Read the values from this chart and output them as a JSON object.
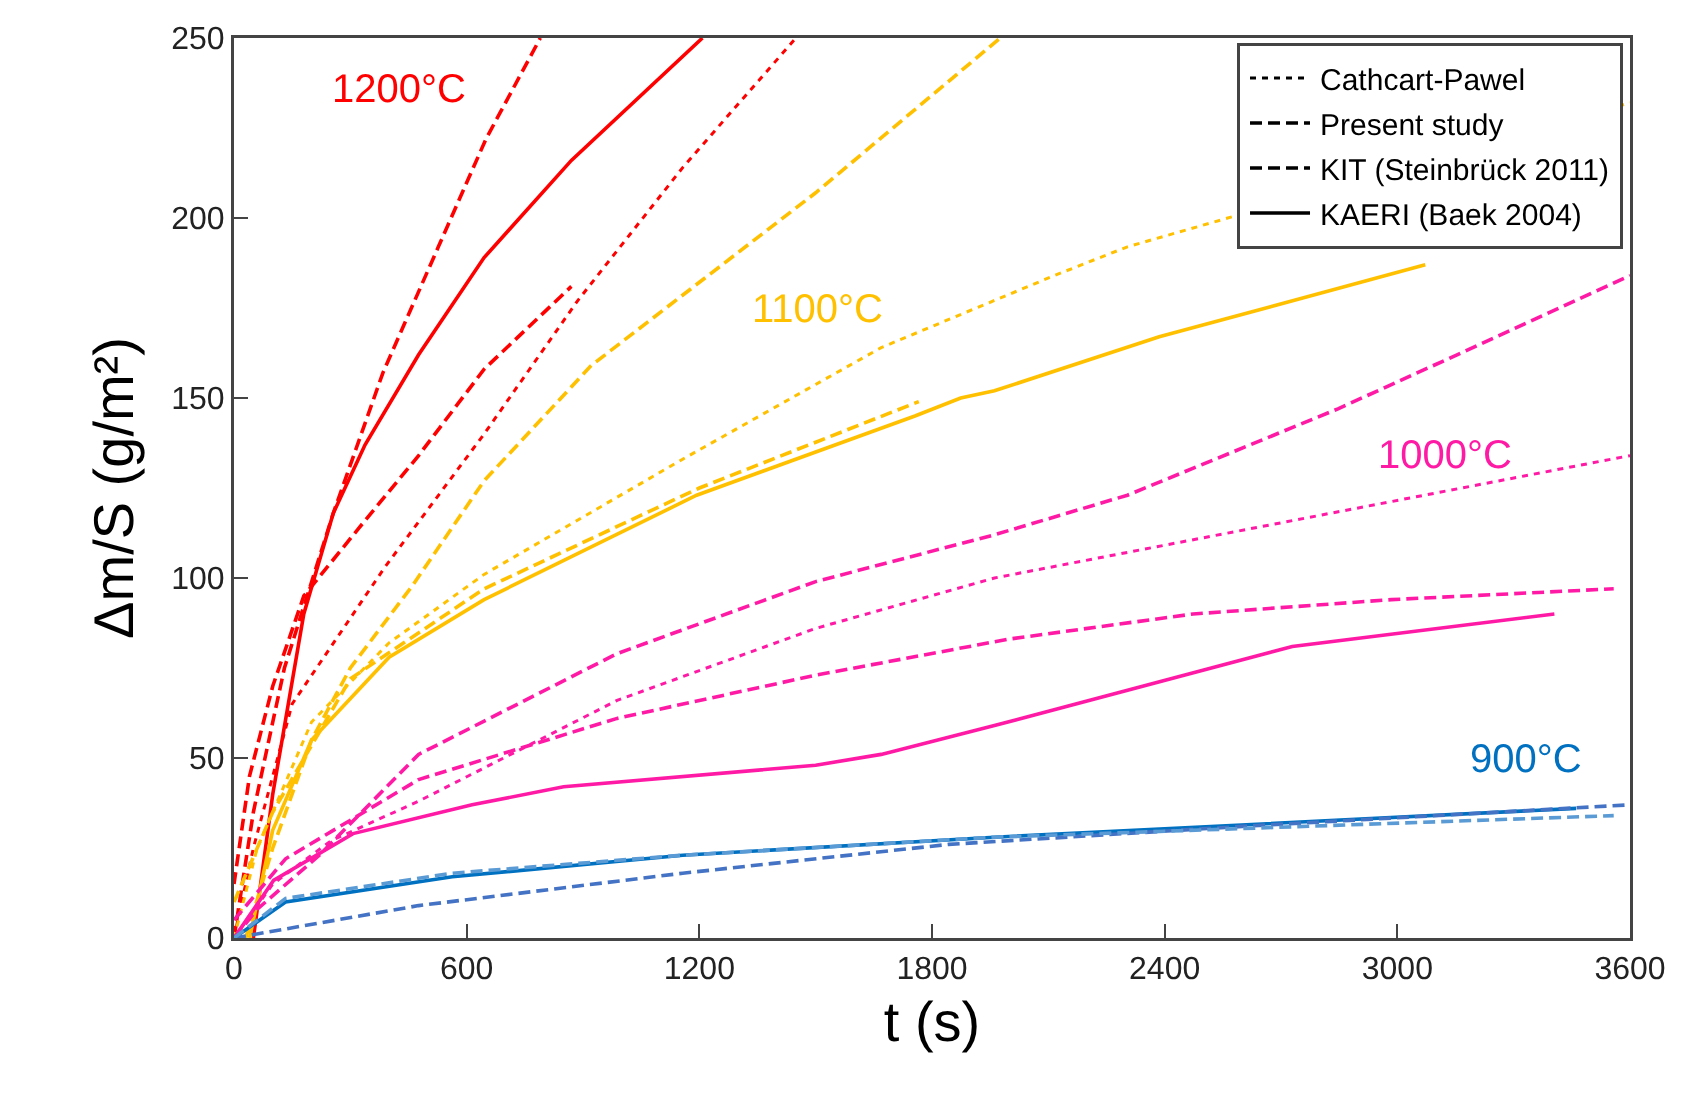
{
  "chart_data": {
    "type": "line",
    "xlabel": "t (s)",
    "ylabel": "Δm/S (g/m²)",
    "xlim": [
      0,
      3600
    ],
    "xticks": [
      0,
      600,
      1200,
      1800,
      2400,
      3000,
      3600
    ],
    "ylim": [
      0,
      250
    ],
    "yticks": [
      0,
      50,
      100,
      150,
      200,
      250
    ],
    "grid": false,
    "legend": "top right",
    "marker": "none",
    "annotations": [
      "1200°C",
      "1100°C",
      "1000°C",
      "900°C"
    ],
    "series": [
      {
        "color": "#ff0000",
        "line_style": "solid",
        "x": [
          50,
          100,
          180,
          256,
          338,
          476,
          645,
          870,
          1208
        ],
        "values": [
          0,
          40,
          90,
          118,
          137,
          162,
          189,
          216,
          250
        ]
      },
      {
        "color": "#ff0000",
        "line_style": "dashed",
        "x": [
          0,
          50,
          130,
          256,
          384,
          527,
          650,
          790
        ],
        "values": [
          0,
          35,
          75,
          118,
          157,
          192,
          222,
          250
        ]
      },
      {
        "color": "#ff0000",
        "line_style": "dotted",
        "x": [
          0,
          50,
          150,
          389,
          645,
          886,
          1157,
          1449
        ],
        "values": [
          0,
          25,
          65,
          103,
          140,
          177,
          214,
          250
        ]
      },
      {
        "color": "#ff0000",
        "line_style": "dashed",
        "x": [
          0,
          40,
          100,
          180,
          323,
          476,
          645,
          870
        ],
        "values": [
          15,
          45,
          70,
          95,
          114,
          134,
          158,
          181
        ]
      },
      {
        "color": "#ffc000",
        "line_style": "solid",
        "x": [
          40,
          100,
          200,
          400,
          645,
          1193,
          1756,
          1874,
          1961,
          2386,
          3072
        ],
        "values": [
          0,
          30,
          55,
          78,
          94,
          123,
          145,
          150,
          152,
          167,
          187
        ]
      },
      {
        "color": "#ffc000",
        "line_style": "dashed",
        "x": [
          30,
          100,
          200,
          300,
          461,
          645,
          921,
          1500,
          1976
        ],
        "values": [
          0,
          25,
          55,
          75,
          98,
          127,
          159,
          207,
          250
        ]
      },
      {
        "color": "#ffc000",
        "line_style": "dotted",
        "x": [
          0,
          60,
          200,
          400,
          645,
          1157,
          1669,
          2115,
          2304,
          3600
        ],
        "values": [
          0,
          25,
          60,
          82,
          101,
          133,
          164,
          184,
          192,
          232
        ]
      },
      {
        "color": "#ffc000",
        "line_style": "dashed",
        "x": [
          0,
          100,
          300,
          645,
          1200,
          1766
        ],
        "values": [
          10,
          35,
          72,
          97,
          125,
          149
        ]
      },
      {
        "color": "#ff1aa6",
        "line_style": "solid",
        "x": [
          0,
          102,
          307,
          614,
          850,
          1500,
          1669,
          1961,
          2729,
          3405
        ],
        "values": [
          0,
          16,
          29,
          37,
          42,
          48,
          51,
          59,
          81,
          90
        ]
      },
      {
        "color": "#ff1aa6",
        "line_style": "dashed",
        "x": [
          0,
          60,
          220,
          476,
          988,
          1500,
          1961,
          2304,
          2847,
          3154,
          3600
        ],
        "values": [
          0,
          8,
          23,
          51,
          79,
          99,
          112,
          123,
          147,
          162,
          184
        ]
      },
      {
        "color": "#ff1aa6",
        "line_style": "dotted",
        "x": [
          0,
          100,
          250,
          476,
          988,
          1500,
          1961,
          3600
        ],
        "values": [
          0,
          15,
          27,
          38,
          66,
          86,
          100,
          134
        ]
      },
      {
        "color": "#ff1aa6",
        "line_style": "dashed",
        "x": [
          0,
          133,
          476,
          988,
          1500,
          1997,
          2473,
          2985,
          3558
        ],
        "values": [
          5,
          22,
          44,
          61,
          73,
          83,
          90,
          94,
          97
        ]
      },
      {
        "color": "#0070c0",
        "line_style": "solid",
        "x": [
          0,
          133,
          563,
          1157,
          1961,
          3461
        ],
        "values": [
          0,
          10,
          17,
          23,
          28,
          36
        ]
      },
      {
        "color": "#4472c4",
        "line_style": "dashed",
        "x": [
          0,
          476,
          1157,
          1843,
          2600,
          3600
        ],
        "values": [
          0,
          9,
          18,
          26,
          31,
          37
        ]
      },
      {
        "color": "#5b9bd5",
        "line_style": "dashed",
        "x": [
          0,
          133,
          563,
          1157,
          1961,
          3558
        ],
        "values": [
          0,
          11,
          18,
          23,
          28,
          34
        ]
      },
      {
        "name": "Cathcart-Pawel",
        "color": "#000000",
        "line_style": "dotted"
      },
      {
        "name": "Present study",
        "color": "#000000",
        "line_style": "dashed"
      },
      {
        "name": "KIT (Steinbrück 2011)",
        "color": "#000000",
        "line_style": "dashed"
      },
      {
        "name": "KAERI (Baek 2004)",
        "color": "#000000",
        "line_style": "solid"
      }
    ]
  }
}
